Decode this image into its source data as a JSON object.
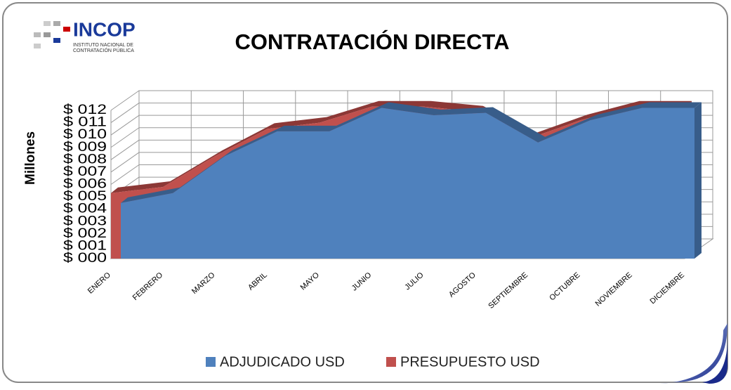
{
  "chart_data": {
    "type": "area",
    "title": "CONTRATACIÓN DIRECTA",
    "logo": {
      "name": "INCOP",
      "subtitle_line1": "INSTITUTO NACIONAL DE",
      "subtitle_line2": "CONTRATACIÓN PÚBLICA"
    },
    "y_label": "Millones",
    "categories": [
      "ENERO",
      "FEBRERO",
      "MARZO",
      "ABRIL",
      "MAYO",
      "JUNIO",
      "JULIO",
      "AGOSTO",
      "SEPTIEMBRE",
      "OCTUBRE",
      "NOVIEMBRE",
      "DICIEMBRE"
    ],
    "series": [
      {
        "name": "ADJUDICADO USD",
        "color": "#4f81bd",
        "values": [
          4.5,
          5.3,
          8.3,
          10.3,
          10.3,
          12.2,
          11.6,
          11.8,
          9.4,
          11.2,
          12.2,
          12.2
        ]
      },
      {
        "name": "PRESUPUESTO USD",
        "color": "#c0504d",
        "values": [
          5.3,
          5.8,
          8.3,
          10.5,
          11.0,
          12.3,
          12.3,
          11.9,
          9.7,
          11.2,
          12.3,
          12.3
        ]
      }
    ],
    "ylim": [
      0,
      12
    ],
    "yticks": [
      {
        "value": 0,
        "label": "$ 000"
      },
      {
        "value": 1,
        "label": "$ 001"
      },
      {
        "value": 2,
        "label": "$ 002"
      },
      {
        "value": 3,
        "label": "$ 003"
      },
      {
        "value": 4,
        "label": "$ 004"
      },
      {
        "value": 5,
        "label": "$ 005"
      },
      {
        "value": 6,
        "label": "$ 006"
      },
      {
        "value": 7,
        "label": "$ 007"
      },
      {
        "value": 8,
        "label": "$ 008"
      },
      {
        "value": 9,
        "label": "$ 009"
      },
      {
        "value": 10,
        "label": "$ 010"
      },
      {
        "value": 11,
        "label": "$ 011"
      },
      {
        "value": 12,
        "label": "$ 012"
      }
    ],
    "grid": true,
    "legend": "bottom"
  }
}
